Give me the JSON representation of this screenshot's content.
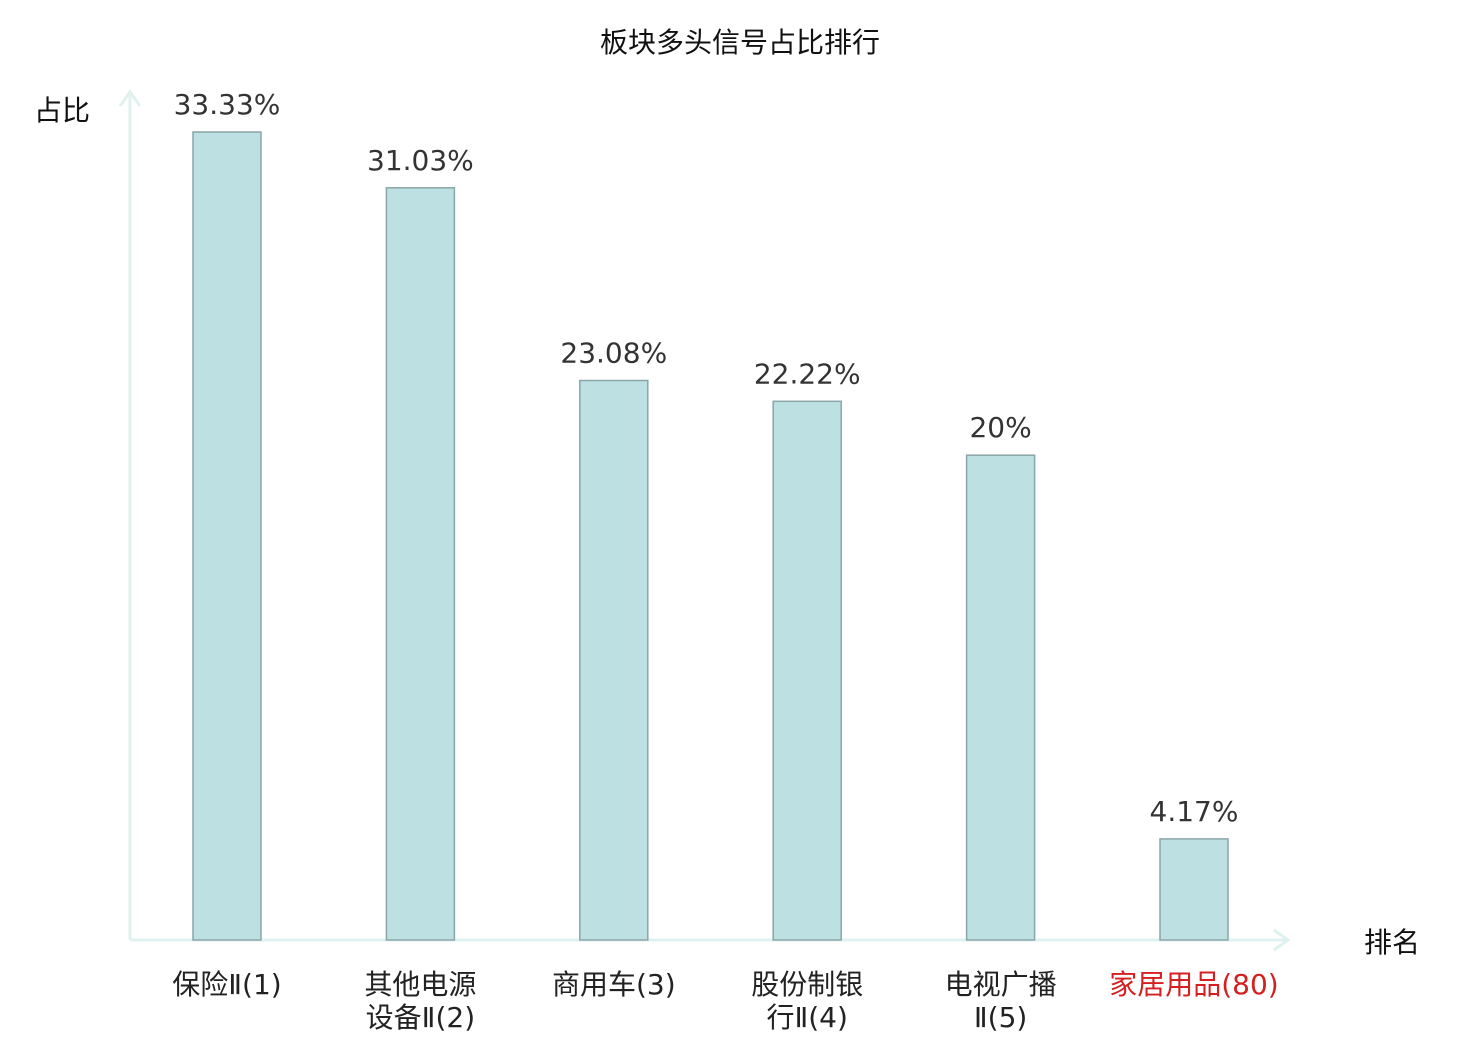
{
  "chart_data": {
    "type": "bar",
    "title": "板块多头信号占比排行",
    "ylabel": "占比",
    "xlabel": "排名",
    "categories": [
      [
        "保险Ⅱ(1)"
      ],
      [
        "其他电源",
        "设备Ⅱ(2)"
      ],
      [
        "商用车(3)"
      ],
      [
        "股份制银",
        "行Ⅱ(4)"
      ],
      [
        "电视广播",
        "Ⅱ(5)"
      ],
      [
        "家居用品(80)"
      ]
    ],
    "values": [
      33.33,
      31.03,
      23.08,
      22.22,
      20,
      4.17
    ],
    "value_labels": [
      "33.33%",
      "31.03%",
      "23.08%",
      "22.22%",
      "20%",
      "4.17%"
    ],
    "highlight_index": 5,
    "ylim": [
      0,
      35
    ],
    "grid": false,
    "legend": "none"
  },
  "colors": {
    "bar_fill": "#bde0e2",
    "bar_stroke": "#8aa6a8",
    "axis": "#e0f2ef",
    "highlight_label": "#d42020",
    "text": "#222222"
  }
}
